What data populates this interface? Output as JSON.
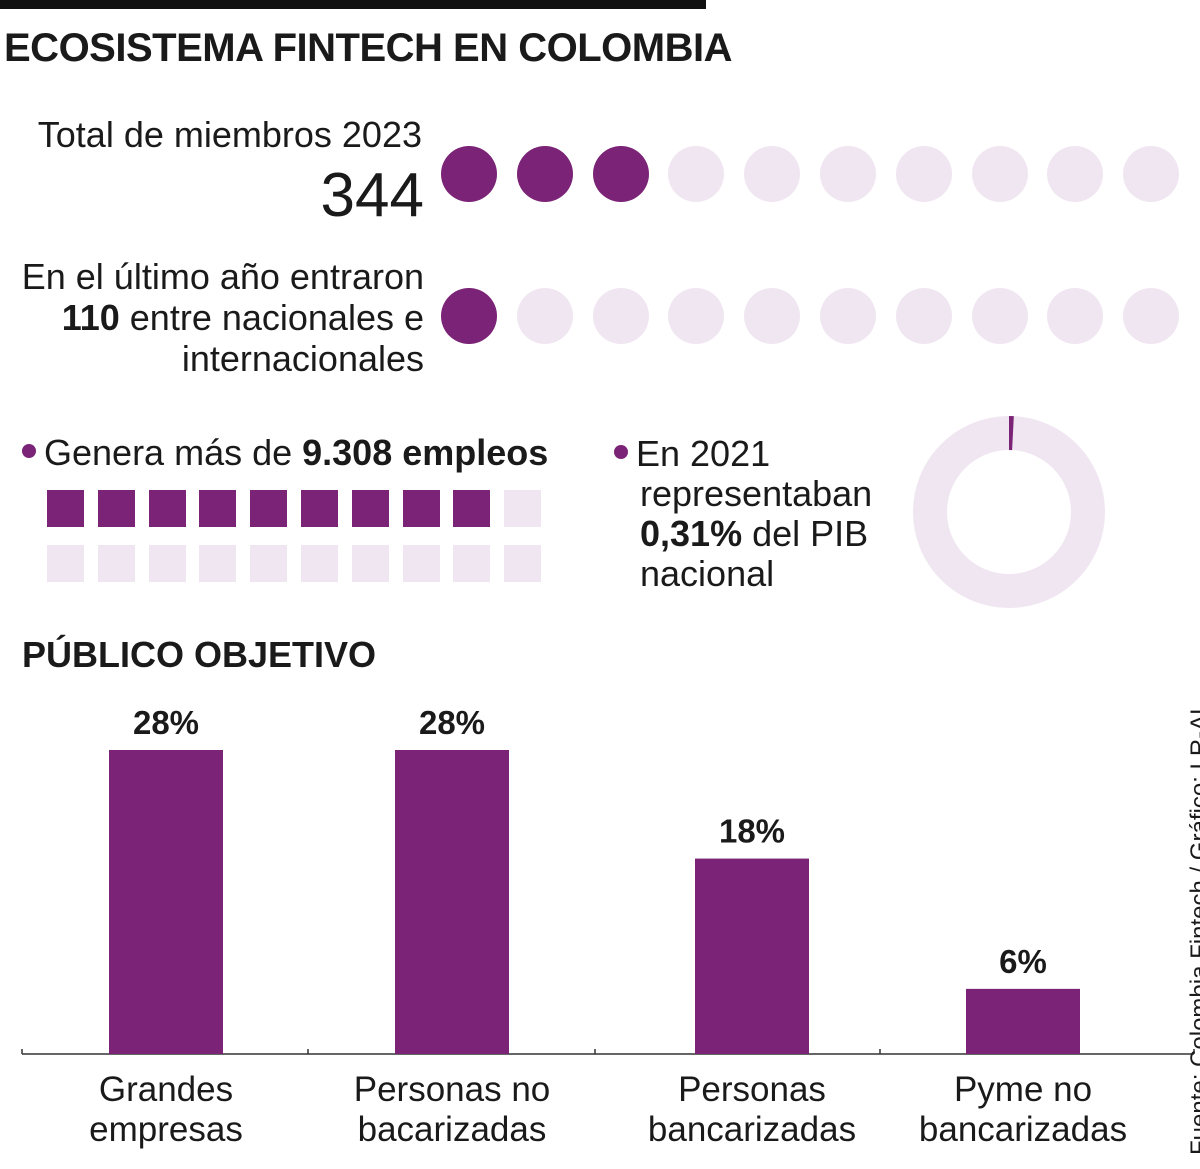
{
  "title": "ECOSISTEMA FINTECH EN COLOMBIA",
  "colors": {
    "accent": "#7B2376",
    "light": "#F0E6F1",
    "ink": "#1a1a1a"
  },
  "members": {
    "label": "Total de miembros 2023",
    "value": "344",
    "filled_dots": 3,
    "total_dots": 10
  },
  "entered": {
    "line1": "En el último año entraron",
    "number": "110",
    "line2_rest": " entre nacionales e",
    "line3": "internacionales",
    "filled_dots": 1,
    "total_dots": 10
  },
  "employment": {
    "prefix": "Genera más de ",
    "bold": "9.308 empleos",
    "filled_squares": 9,
    "total_squares": 20
  },
  "pib": {
    "line1": "En 2021",
    "line2": "representaban",
    "bold": "0,31%",
    "line3_rest": " del PIB",
    "line4": "nacional",
    "percent": 0.31
  },
  "section_title": "PÚBLICO OBJETIVO",
  "chart_data": {
    "type": "bar",
    "title": "PÚBLICO OBJETIVO",
    "categories": [
      [
        "Grandes",
        "empresas"
      ],
      [
        "Personas no",
        "bacarizadas"
      ],
      [
        "Personas",
        "bancarizadas"
      ],
      [
        "Pyme no",
        "bancarizadas"
      ]
    ],
    "values": [
      28,
      28,
      18,
      6
    ],
    "value_labels": [
      "28%",
      "28%",
      "18%",
      "6%"
    ],
    "ylim": [
      0,
      30
    ],
    "xlabel": "",
    "ylabel": ""
  },
  "source": "Fuente: Colombia Fintech / Gráfico: LR-AL"
}
